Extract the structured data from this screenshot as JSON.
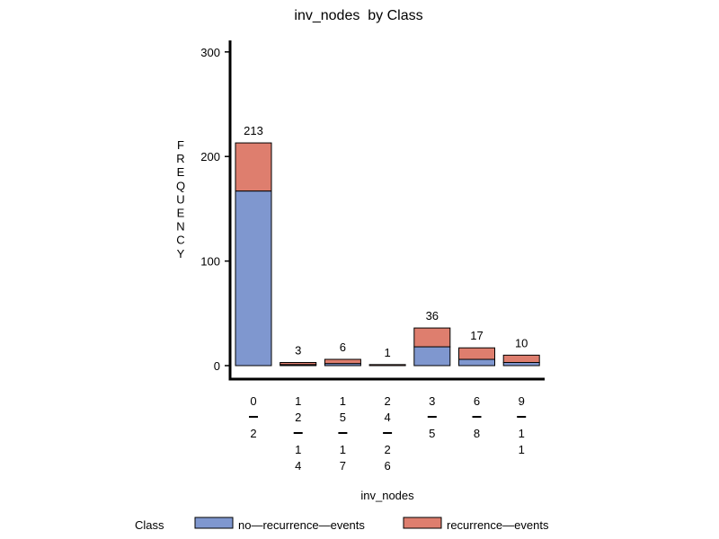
{
  "chart_data": {
    "type": "bar",
    "stacked": true,
    "title": "inv_nodes  by Class",
    "xlabel": "inv_nodes",
    "ylabel": "FREQUENCY",
    "ylim": [
      0,
      310
    ],
    "yticks": [
      0,
      100,
      200,
      300
    ],
    "grid": false,
    "legend_title": "Class",
    "legend_position": "bottom",
    "categories": [
      "0-2",
      "12-14",
      "15-17",
      "24-26",
      "3-5",
      "6-8",
      "9-11"
    ],
    "category_lines": [
      [
        "0",
        "—",
        "2"
      ],
      [
        "1",
        "2",
        "—",
        "1",
        "4"
      ],
      [
        "1",
        "5",
        "—",
        "1",
        "7"
      ],
      [
        "2",
        "4",
        "—",
        "2",
        "6"
      ],
      [
        "3",
        "—",
        "5"
      ],
      [
        "6",
        "—",
        "8"
      ],
      [
        "9",
        "—",
        "1",
        "1"
      ]
    ],
    "series": [
      {
        "name": "no—recurrence—events",
        "color": "#7f97cf",
        "values": [
          167,
          1,
          2,
          0,
          18,
          6,
          3
        ]
      },
      {
        "name": "recurrence—events",
        "color": "#de7e6e",
        "values": [
          46,
          2,
          4,
          1,
          18,
          11,
          7
        ]
      }
    ],
    "totals": [
      213,
      3,
      6,
      1,
      36,
      17,
      10
    ]
  }
}
